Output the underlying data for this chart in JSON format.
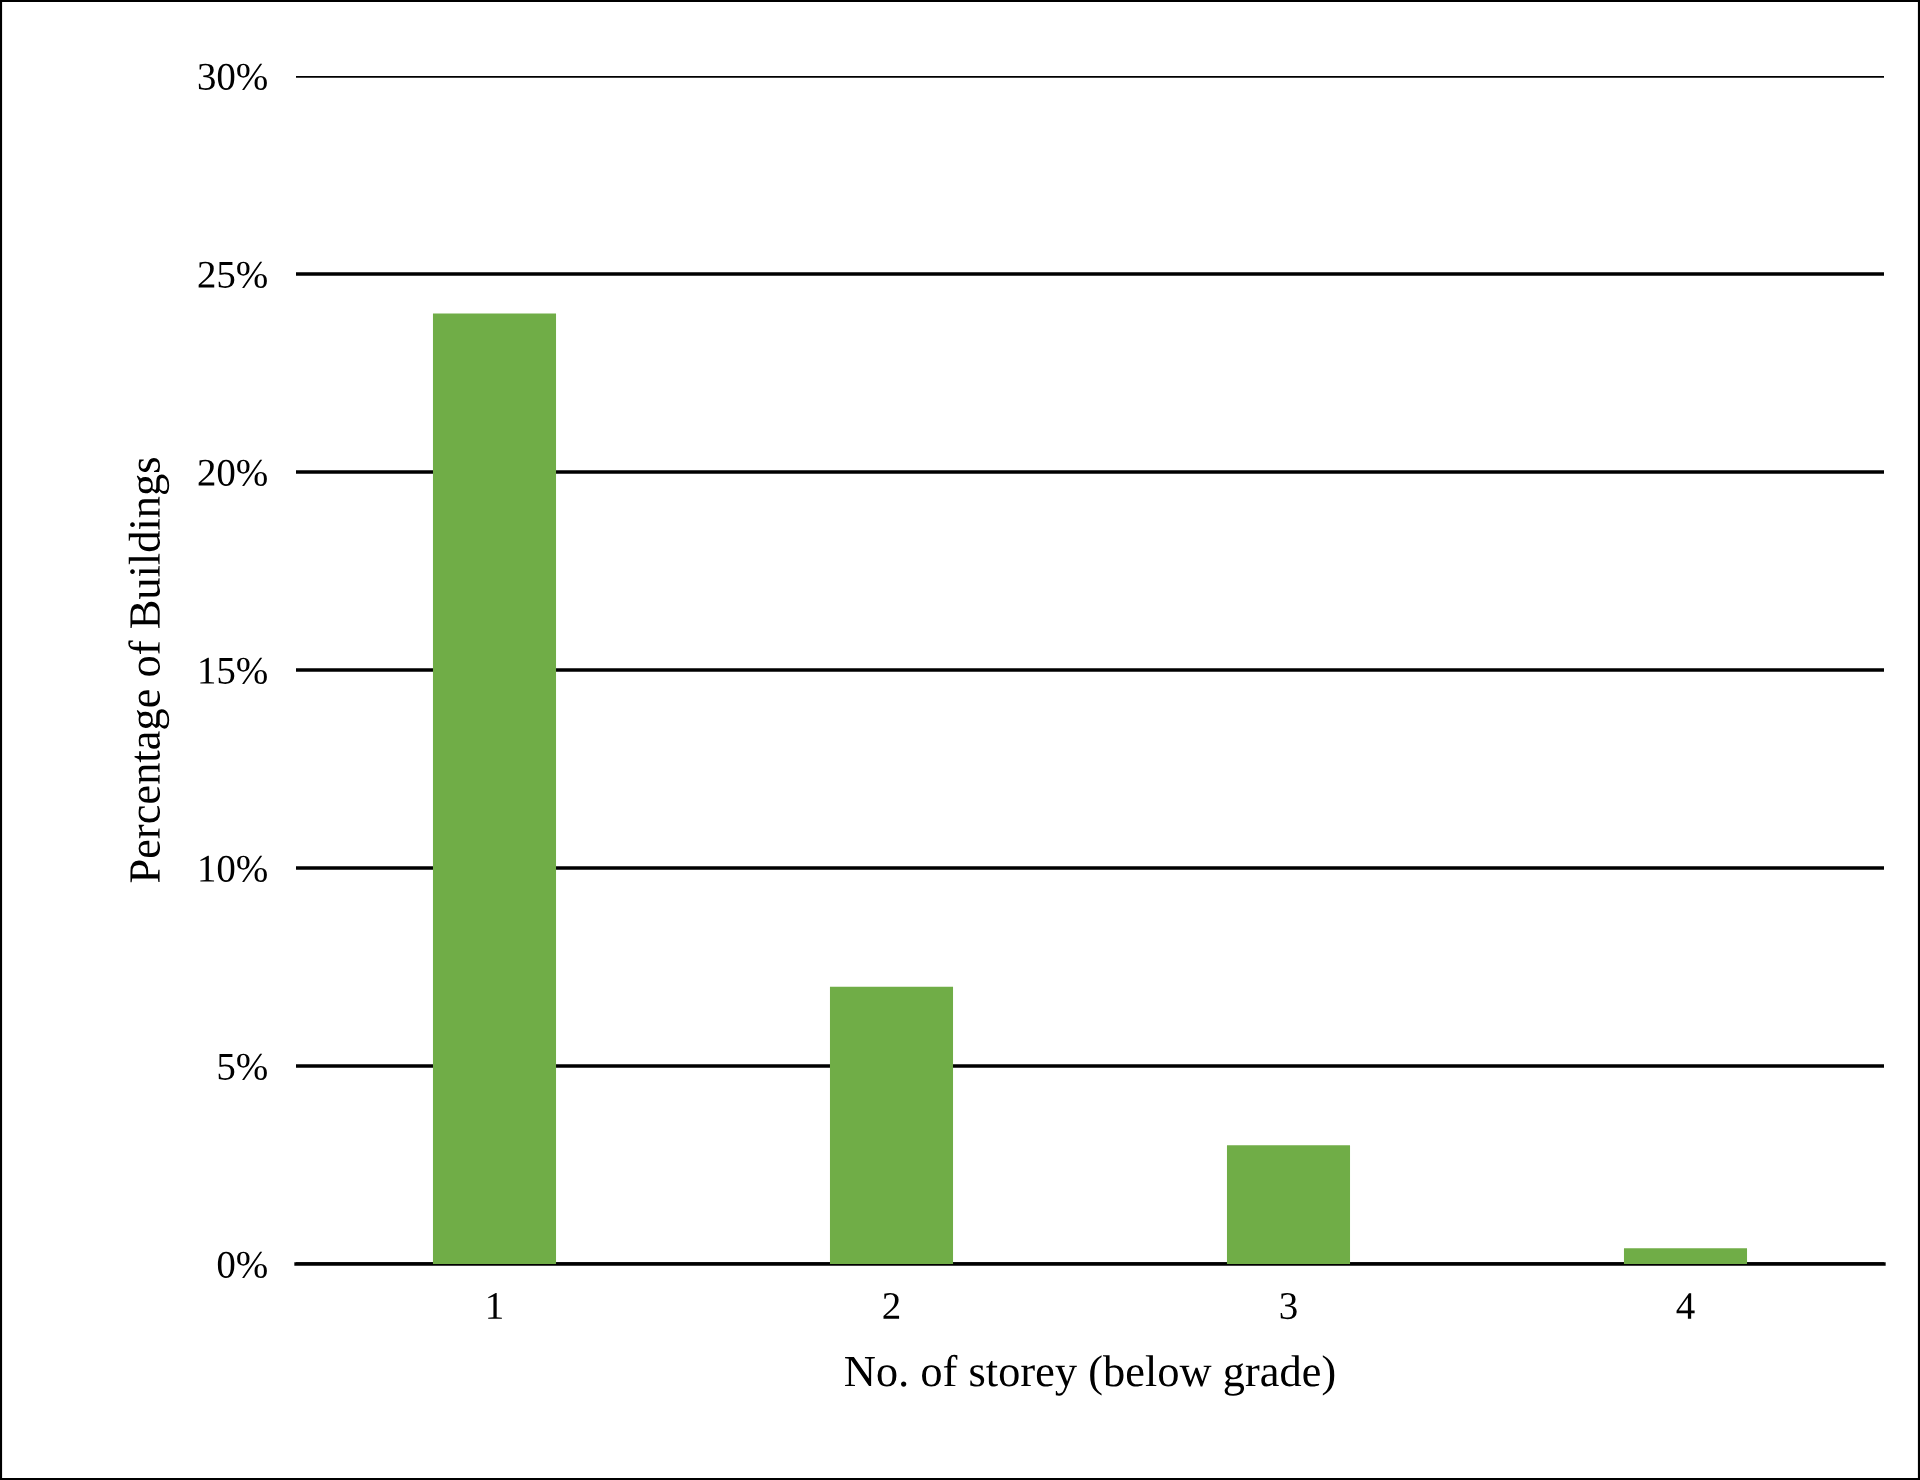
{
  "chart_data": {
    "type": "bar",
    "xlabel": "No. of storey (below grade)",
    "ylabel": "Percentage of Buildings",
    "categories": [
      "1",
      "2",
      "3",
      "4"
    ],
    "values": [
      24,
      7,
      3,
      0.4
    ],
    "color": "#70ad47",
    "ylim": [
      0,
      30
    ],
    "yticks": [
      {
        "value": 0,
        "label": "0%"
      },
      {
        "value": 5,
        "label": "5%"
      },
      {
        "value": 10,
        "label": "10%"
      },
      {
        "value": 15,
        "label": "15%"
      },
      {
        "value": 20,
        "label": "20%"
      },
      {
        "value": 25,
        "label": "25%"
      },
      {
        "value": 30,
        "label": "30%"
      }
    ],
    "grid": "y",
    "legend": false
  }
}
